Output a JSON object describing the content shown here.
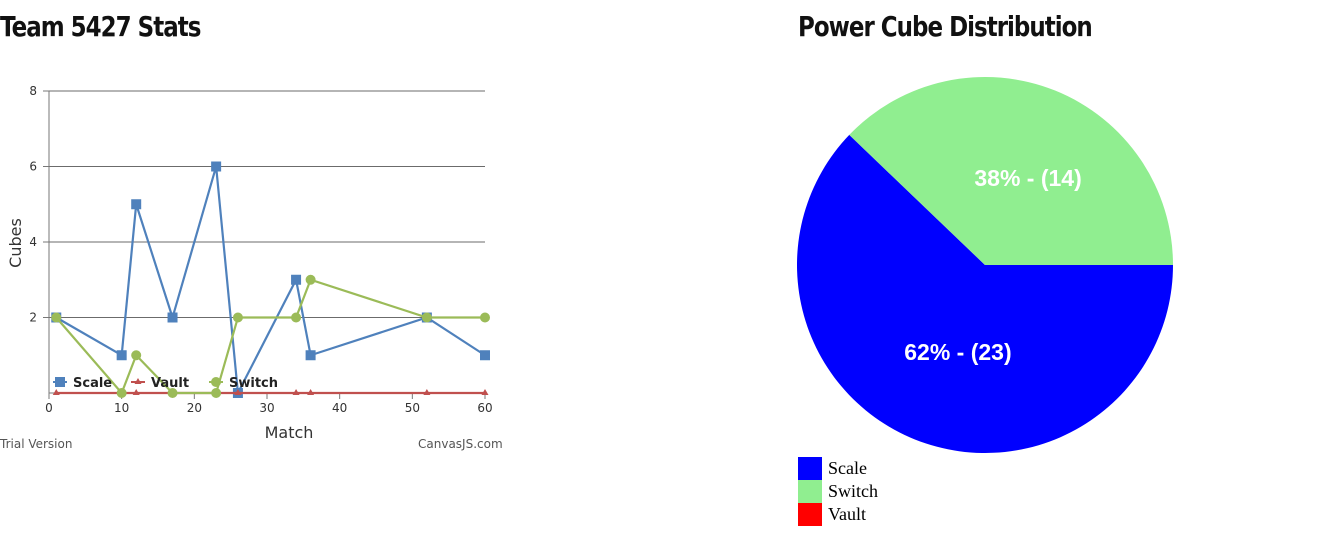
{
  "line_panel": {
    "title": "Team 5427 Stats",
    "trial_text": "Trial Version",
    "credit_text": "CanvasJS.com"
  },
  "pie_panel": {
    "title": "Power Cube Distribution"
  },
  "chart_data": [
    {
      "type": "line",
      "xlabel": "Match",
      "ylabel": "Cubes",
      "xlim": [
        0,
        60
      ],
      "ylim": [
        0,
        8
      ],
      "xticks": [
        0,
        10,
        20,
        30,
        40,
        50,
        60
      ],
      "yticks": [
        2,
        4,
        6,
        8
      ],
      "grid": true,
      "legend_position": "bottom-left",
      "series": [
        {
          "name": "Scale",
          "color": "#4f81bc",
          "marker": "square",
          "x": [
            1,
            10,
            12,
            17,
            23,
            26,
            34,
            36,
            52,
            60
          ],
          "y": [
            2,
            1,
            5,
            2,
            6,
            0,
            3,
            1,
            2,
            1
          ]
        },
        {
          "name": "Vault",
          "color": "#c0504e",
          "marker": "triangle",
          "x": [
            1,
            10,
            12,
            17,
            23,
            26,
            34,
            36,
            52,
            60
          ],
          "y": [
            0,
            0,
            0,
            0,
            0,
            0,
            0,
            0,
            0,
            0
          ]
        },
        {
          "name": "Switch",
          "color": "#9bbb58",
          "marker": "circle",
          "x": [
            1,
            10,
            12,
            17,
            23,
            26,
            34,
            36,
            52,
            60
          ],
          "y": [
            2,
            0,
            1,
            0,
            0,
            2,
            2,
            3,
            2,
            2
          ]
        }
      ]
    },
    {
      "type": "pie",
      "slices": [
        {
          "name": "Scale",
          "value": 23,
          "percent": 62,
          "label": "62% - (23)",
          "color": "#0000ff"
        },
        {
          "name": "Switch",
          "value": 14,
          "percent": 38,
          "label": "38% - (14)",
          "color": "#90ee90"
        },
        {
          "name": "Vault",
          "value": 0,
          "percent": 0,
          "label": "",
          "color": "#ff0000"
        }
      ],
      "legend_position": "bottom-left"
    }
  ]
}
